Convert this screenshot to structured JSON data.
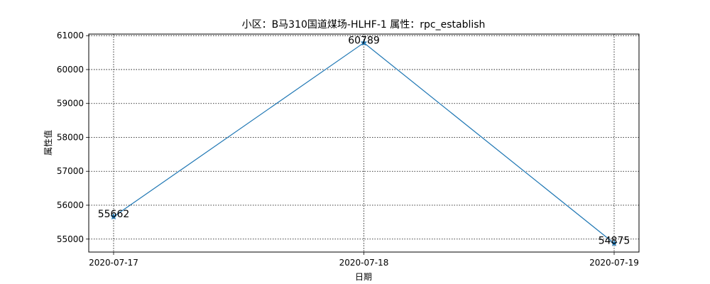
{
  "chart_data": {
    "type": "line",
    "title": "小区：B马310国道煤场-HLHF-1    属性：rpc_establish",
    "xlabel": "日期",
    "ylabel": "属性值",
    "categories": [
      "2020-07-17",
      "2020-07-18",
      "2020-07-19"
    ],
    "series": [
      {
        "values": [
          55662,
          60789,
          54875
        ],
        "color": "#1f77b4",
        "marker": "star"
      }
    ],
    "data_labels": [
      "55662",
      "60789",
      "54875"
    ],
    "yticks": [
      55000,
      56000,
      57000,
      58000,
      59000,
      60000,
      61000
    ],
    "ytick_labels": [
      "55000",
      "56000",
      "57000",
      "58000",
      "59000",
      "60000",
      "61000"
    ],
    "ylim": [
      54618,
      61046
    ],
    "grid": true,
    "legend": "none"
  }
}
